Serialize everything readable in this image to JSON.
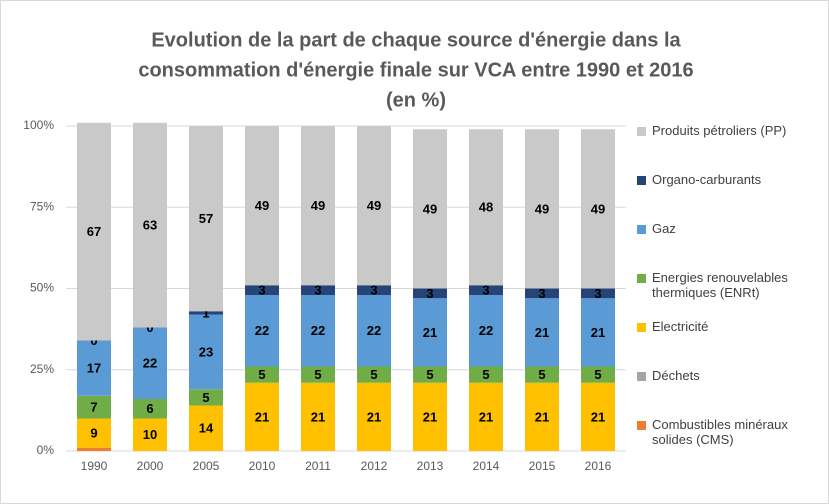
{
  "chart_data": {
    "type": "stacked_bar",
    "title": [
      "Evolution de la part de chaque source d'énergie dans la",
      "consommation d'énergie finale sur VCA entre 1990 et 2016",
      "(en %)"
    ],
    "categories": [
      "1990",
      "2000",
      "2005",
      "2010",
      "2011",
      "2012",
      "2013",
      "2014",
      "2015",
      "2016"
    ],
    "series": [
      {
        "name": "Combustibles minéraux solides (CMS)",
        "color": "#ed7d31",
        "values": [
          1,
          0,
          0,
          0,
          0,
          0,
          0,
          0,
          0,
          0
        ],
        "data_labels": false
      },
      {
        "name": "Déchets",
        "color": "#a5a5a5",
        "values": [
          0,
          0,
          0,
          0,
          0,
          0,
          0,
          0,
          0,
          0
        ],
        "data_labels": false
      },
      {
        "name": "Electricité",
        "color": "#ffc000",
        "values": [
          9,
          10,
          14,
          21,
          21,
          21,
          21,
          21,
          21,
          21
        ],
        "data_labels": true
      },
      {
        "name": "Energies renouvelables thermiques (ENRt)",
        "color": "#70ad47",
        "values": [
          7,
          6,
          5,
          5,
          5,
          5,
          5,
          5,
          5,
          5
        ],
        "data_labels": true
      },
      {
        "name": "Gaz",
        "color": "#5b9bd5",
        "values": [
          17,
          22,
          23,
          22,
          22,
          22,
          21,
          22,
          21,
          21
        ],
        "data_labels": true
      },
      {
        "name": "Organo-carburants",
        "color": "#264478",
        "values": [
          0,
          0,
          1,
          3,
          3,
          3,
          3,
          3,
          3,
          3
        ],
        "data_labels": true
      },
      {
        "name": "Produits pétroliers (PP)",
        "color": "#c9c9c9",
        "values": [
          67,
          63,
          57,
          49,
          49,
          49,
          49,
          48,
          49,
          49
        ],
        "data_labels": true
      }
    ],
    "ylim": [
      0,
      100
    ],
    "yticks": [
      {
        "value": 0,
        "label": "0%"
      },
      {
        "value": 25,
        "label": "25%"
      },
      {
        "value": 50,
        "label": "50%"
      },
      {
        "value": 75,
        "label": "75%"
      },
      {
        "value": 100,
        "label": "100%"
      }
    ],
    "grid": true,
    "legend": "right"
  }
}
